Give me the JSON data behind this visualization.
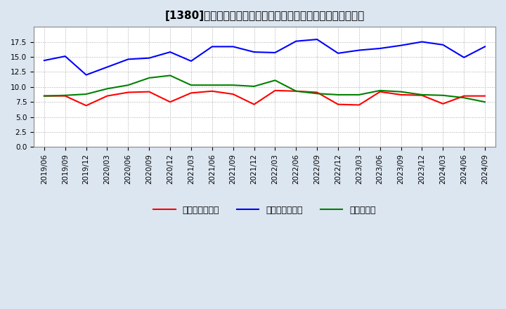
{
  "title": "[1380]　売上債権回転率、買入債務回転率、在庫回転率の推移",
  "x_labels": [
    "2019/06",
    "2019/09",
    "2019/12",
    "2020/03",
    "2020/06",
    "2020/09",
    "2020/12",
    "2021/03",
    "2021/06",
    "2021/09",
    "2021/12",
    "2022/03",
    "2022/06",
    "2022/09",
    "2022/12",
    "2023/03",
    "2023/06",
    "2023/09",
    "2023/12",
    "2024/03",
    "2024/06",
    "2024/09"
  ],
  "receivables_turnover": [
    8.5,
    8.5,
    6.9,
    8.5,
    9.1,
    9.2,
    7.5,
    9.0,
    9.3,
    8.8,
    7.1,
    9.4,
    9.3,
    9.1,
    7.1,
    7.0,
    9.2,
    8.7,
    8.6,
    7.2,
    8.5,
    8.5
  ],
  "payables_turnover": [
    14.4,
    15.1,
    12.0,
    13.3,
    14.6,
    14.8,
    15.8,
    14.3,
    16.7,
    16.7,
    15.8,
    15.7,
    17.6,
    17.9,
    15.6,
    16.1,
    16.4,
    16.9,
    17.5,
    17.0,
    14.9,
    16.7
  ],
  "inventory_turnover": [
    8.5,
    8.6,
    8.8,
    9.7,
    10.3,
    11.5,
    11.9,
    10.3,
    10.3,
    10.3,
    10.1,
    11.1,
    9.3,
    8.9,
    8.7,
    8.7,
    9.4,
    9.2,
    8.7,
    8.6,
    8.2,
    7.5
  ],
  "line_colors": {
    "receivables": "#ff0000",
    "payables": "#0000ff",
    "inventory": "#008000"
  },
  "legend_labels": [
    "売上債権回転率",
    "買入債務回転率",
    "在庫回転率"
  ],
  "ylim": [
    0.0,
    20.0
  ],
  "yticks": [
    0.0,
    2.5,
    5.0,
    7.5,
    10.0,
    12.5,
    15.0,
    17.5
  ],
  "background_color": "#dce6f1",
  "plot_background": "#ffffff",
  "grid_color": "#aaaaaa",
  "title_fontsize": 11,
  "tick_fontsize": 7.5,
  "legend_fontsize": 9
}
